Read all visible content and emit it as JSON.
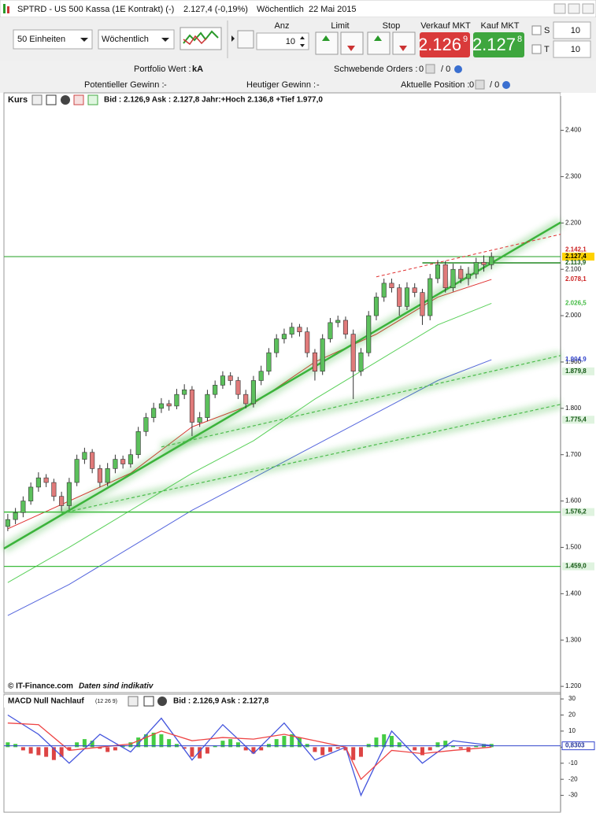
{
  "window": {
    "title": "SPTRD - US 500 Kassa (1E Kontrakt) (-)",
    "price": "2.127,4 (-0,19%)",
    "interval": "Wöchentlich",
    "date": "22 Mai 2015"
  },
  "toolbar": {
    "units": "50 Einheiten",
    "interval": "Wöchentlich",
    "anz_label": "Anz",
    "anz": "10",
    "limit": "Limit",
    "stop": "Stop",
    "sell_label": "Verkauf MKT",
    "sell_big": "2.126",
    "sell_small": "9",
    "buy_label": "Kauf MKT",
    "buy_big": "2.127",
    "buy_small": "8",
    "s_label": "S",
    "s_value": "10",
    "t_label": "T",
    "t_value": "10"
  },
  "info": {
    "portfolio_label": "Portfolio Wert :",
    "portfolio_value": "kA",
    "pending_label": "Schwebende Orders :",
    "pending_1": "0",
    "pending_2": "/ 0",
    "potential_label": "Potentieller Gewinn :",
    "potential_value": "-",
    "today_label": "Heutiger Gewinn :",
    "today_value": "-",
    "position_label": "Aktuelle Position :",
    "position_1": "0",
    "position_2": "/ 0"
  },
  "chart_data": [
    {
      "type": "candlestick",
      "title": "Kurs",
      "header": "Bid : 2.126,9  Ask : 2.127,8  Jahr:+Hoch 2.136,8  +Tief 1.977,0",
      "footer": "© IT-Finance.com",
      "footer_note": "Daten sind indikativ",
      "up_color": "#5cc05c",
      "down_color": "#e07a7a",
      "xlim": [
        -0.5,
        72
      ],
      "ylim": [
        1190,
        2440
      ],
      "yticks": [
        {
          "value": 2400,
          "label": "2.400"
        },
        {
          "value": 2300,
          "label": "2.300"
        },
        {
          "value": 2200,
          "label": "2.200"
        },
        {
          "value": 2100,
          "label": "2.100"
        },
        {
          "value": 2000,
          "label": "2.000"
        },
        {
          "value": 1900,
          "label": "1.900"
        },
        {
          "value": 1800,
          "label": "1.800"
        },
        {
          "value": 1700,
          "label": "1.700"
        },
        {
          "value": 1600,
          "label": "1.600"
        },
        {
          "value": 1500,
          "label": "1.500"
        },
        {
          "value": 1400,
          "label": "1.400"
        },
        {
          "value": 1300,
          "label": "1.300"
        },
        {
          "value": 1200,
          "label": "1.200"
        }
      ],
      "open": [
        1545,
        1560,
        1575,
        1600,
        1630,
        1650,
        1640,
        1610,
        1590,
        1640,
        1690,
        1705,
        1670,
        1640,
        1670,
        1690,
        1680,
        1700,
        1750,
        1780,
        1800,
        1810,
        1805,
        1830,
        1840,
        1770,
        1780,
        1830,
        1850,
        1870,
        1860,
        1830,
        1810,
        1860,
        1880,
        1920,
        1950,
        1960,
        1975,
        1965,
        1920,
        1880,
        1950,
        1985,
        1990,
        1960,
        1880,
        1920,
        2000,
        2040,
        2070,
        2060,
        2020,
        2060,
        2050,
        2000,
        2080,
        2110,
        2060,
        2100,
        2080,
        2090,
        2115,
        2110
      ],
      "high": [
        1572,
        1585,
        1610,
        1640,
        1662,
        1658,
        1648,
        1620,
        1650,
        1700,
        1715,
        1712,
        1678,
        1682,
        1700,
        1698,
        1712,
        1760,
        1790,
        1812,
        1822,
        1818,
        1842,
        1852,
        1848,
        1792,
        1840,
        1860,
        1880,
        1878,
        1868,
        1840,
        1870,
        1892,
        1930,
        1960,
        1972,
        1985,
        1982,
        1975,
        1928,
        1960,
        1995,
        2000,
        1998,
        1970,
        1930,
        2010,
        2050,
        2080,
        2080,
        2068,
        2072,
        2070,
        2058,
        2090,
        2120,
        2118,
        2112,
        2108,
        2105,
        2125,
        2130,
        2136.8
      ],
      "low": [
        1535,
        1550,
        1565,
        1592,
        1620,
        1630,
        1600,
        1578,
        1582,
        1632,
        1680,
        1660,
        1630,
        1632,
        1660,
        1670,
        1672,
        1692,
        1740,
        1770,
        1790,
        1795,
        1798,
        1820,
        1740,
        1760,
        1772,
        1822,
        1842,
        1850,
        1820,
        1800,
        1802,
        1850,
        1872,
        1910,
        1940,
        1952,
        1955,
        1910,
        1860,
        1872,
        1942,
        1975,
        1950,
        1820,
        1870,
        1912,
        1990,
        2030,
        2050,
        2000,
        2012,
        2040,
        1980,
        1990,
        2070,
        2050,
        2052,
        2070,
        2065,
        2080,
        2095,
        2100
      ],
      "close": [
        1560,
        1575,
        1600,
        1630,
        1650,
        1640,
        1610,
        1590,
        1640,
        1690,
        1705,
        1670,
        1640,
        1670,
        1690,
        1680,
        1700,
        1750,
        1780,
        1800,
        1810,
        1805,
        1830,
        1840,
        1770,
        1780,
        1830,
        1850,
        1870,
        1860,
        1830,
        1810,
        1860,
        1880,
        1920,
        1950,
        1960,
        1975,
        1965,
        1920,
        1880,
        1950,
        1985,
        1990,
        1960,
        1880,
        1920,
        2000,
        2040,
        2070,
        2060,
        2020,
        2060,
        2050,
        2000,
        2080,
        2110,
        2060,
        2100,
        2080,
        2090,
        2115,
        2110,
        2127.4
      ],
      "lines": [
        {
          "color": "#5ad05a",
          "width": 1,
          "dashed": false,
          "glow": false,
          "x": [
            0,
            8,
            16,
            24,
            32,
            40,
            48,
            56,
            63
          ],
          "values": [
            1424,
            1500,
            1580,
            1660,
            1730,
            1820,
            1900,
            1980,
            2026.5
          ]
        },
        {
          "color": "#5566dd",
          "width": 1,
          "dashed": false,
          "glow": false,
          "x": [
            0,
            8,
            16,
            24,
            32,
            40,
            48,
            56,
            63
          ],
          "values": [
            1353,
            1420,
            1500,
            1580,
            1650,
            1720,
            1790,
            1860,
            1904.9
          ]
        },
        {
          "color": "#e03030",
          "width": 1,
          "dashed": false,
          "glow": false,
          "x": [
            0,
            8,
            16,
            24,
            32,
            40,
            48,
            56,
            63
          ],
          "values": [
            1540,
            1600,
            1660,
            1760,
            1810,
            1900,
            1960,
            2040,
            2078.1
          ]
        },
        {
          "color": "#3aaa3a",
          "width": 1.2,
          "dashed": false,
          "glow": false,
          "x": [
            -0.5,
            72
          ],
          "values": [
            2127.4,
            2127.4
          ]
        },
        {
          "color": "#208820",
          "width": 1.5,
          "dashed": false,
          "glow": false,
          "x": [
            54,
            72
          ],
          "values": [
            2113.9,
            2113.9
          ]
        },
        {
          "color": "#3bbb3b",
          "width": 1.5,
          "dashed": false,
          "glow": true,
          "x": [
            -0.5,
            72
          ],
          "values": [
            1576.2,
            1576.2
          ]
        },
        {
          "color": "#3bbb3b",
          "width": 1.2,
          "dashed": false,
          "glow": true,
          "x": [
            -0.5,
            72
          ],
          "values": [
            1459.0,
            1459.0
          ]
        },
        {
          "color": "#3bb33b",
          "width": 2.5,
          "dashed": false,
          "glow": true,
          "x": [
            -0.5,
            72
          ],
          "values": [
            1497.4,
            2201
          ]
        },
        {
          "color": "#4cbb4c",
          "width": 1.2,
          "dashed": true,
          "glow": true,
          "x": [
            20,
            72
          ],
          "values": [
            1716.7,
            1913.9
          ]
        },
        {
          "color": "#4cbb4c",
          "width": 1.2,
          "dashed": true,
          "glow": true,
          "x": [
            7,
            72
          ],
          "values": [
            1573.9,
            1808.5
          ]
        },
        {
          "color": "#e03030",
          "width": 1,
          "dashed": true,
          "glow": false,
          "x": [
            48,
            72
          ],
          "values": [
            2083.8,
            2175.6
          ]
        }
      ],
      "price_labels": [
        {
          "value": 2142.1,
          "label": "2.142,1",
          "color": "#cc2222"
        },
        {
          "value": 2127.4,
          "label": "2.127,4",
          "color": "#000000",
          "background": "#ffd200"
        },
        {
          "value": 2113.9,
          "label": "2.113,9",
          "color": "#115511"
        },
        {
          "value": 2078.1,
          "label": "2.078,1",
          "color": "#cc2222"
        },
        {
          "value": 2026.5,
          "label": "2.026,5",
          "color": "#44bb44"
        },
        {
          "value": 1904.9,
          "label": "1.904,9",
          "color": "#3344cc"
        },
        {
          "value": 1879.8,
          "label": "1.879,8",
          "color": "#115511",
          "background": "#dff3df"
        },
        {
          "value": 1775.4,
          "label": "1.775,4",
          "color": "#115511",
          "background": "#dff3df"
        },
        {
          "value": 1576.2,
          "label": "1.576,2",
          "color": "#115511",
          "background": "#dff3df"
        },
        {
          "value": 1459.0,
          "label": "1.459,0",
          "color": "#115511",
          "background": "#dff3df"
        }
      ]
    },
    {
      "type": "macd",
      "title": "MACD Null Nachlauf",
      "params": "(12 26 9)",
      "header": "Bid : 2.126,9  Ask : 2.127,8",
      "up_color": "#44cc44",
      "down_color": "#dd4444",
      "xlim": [
        -0.5,
        72
      ],
      "ylim": [
        -40,
        32
      ],
      "yticks": [
        30,
        20,
        10,
        0,
        -10,
        -20,
        -30
      ],
      "histogram": [
        3,
        2,
        -2,
        -4,
        -5,
        -6,
        -8,
        -6,
        -2,
        3,
        5,
        4,
        -1,
        -3,
        -2,
        1,
        3,
        6,
        8,
        9,
        8,
        5,
        2,
        -1,
        -6,
        -7,
        -4,
        1,
        4,
        5,
        3,
        -2,
        -4,
        -2,
        2,
        5,
        7,
        8,
        6,
        2,
        -3,
        -5,
        -3,
        -1,
        -2,
        -8,
        -6,
        2,
        6,
        8,
        7,
        3,
        0,
        -2,
        -5,
        -2,
        3,
        4,
        1,
        -1,
        -3,
        1,
        2,
        2
      ],
      "lines": [
        {
          "color": "#4455dd",
          "x": [
            0,
            4,
            8,
            12,
            16,
            20,
            24,
            28,
            32,
            36,
            40,
            44,
            46,
            50,
            54,
            58,
            63
          ],
          "values": [
            20,
            8,
            -10,
            8,
            -3,
            18,
            -8,
            14,
            -4,
            15,
            -8,
            0,
            -30,
            10,
            -10,
            4,
            1
          ]
        },
        {
          "color": "#ee4444",
          "x": [
            0,
            4,
            8,
            12,
            16,
            20,
            24,
            28,
            32,
            36,
            40,
            44,
            46,
            50,
            54,
            58,
            63
          ],
          "values": [
            15,
            14,
            -2,
            0,
            2,
            10,
            4,
            6,
            5,
            8,
            4,
            0,
            -20,
            -2,
            -4,
            -2,
            0
          ]
        }
      ],
      "last": {
        "value": 0.8303,
        "label": "0,8303"
      }
    }
  ]
}
